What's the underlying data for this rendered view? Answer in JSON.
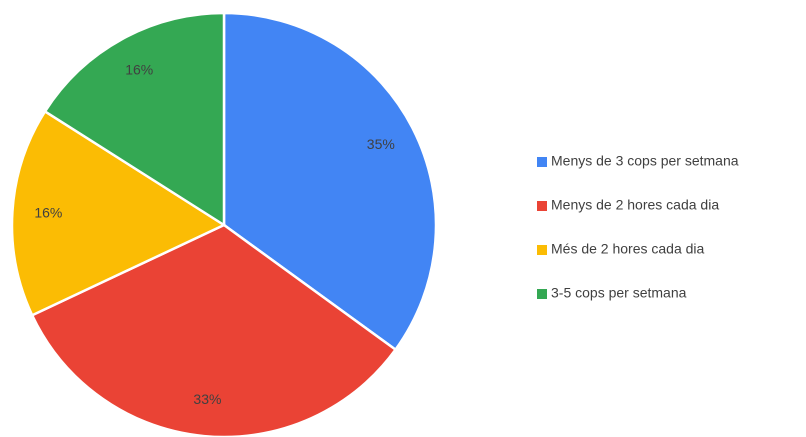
{
  "chart_data": {
    "type": "pie",
    "categories": [
      "Menys de 3 cops per setmana",
      "Menys de 2 hores cada dia",
      "Més de 2 hores cada dia",
      "3-5 cops per setmana"
    ],
    "values": [
      35,
      33,
      16,
      16
    ],
    "value_labels": [
      "35%",
      "33%",
      "16%",
      "16%"
    ],
    "colors": [
      "#4285f4",
      "#ea4335",
      "#fbbc04",
      "#34a853"
    ],
    "legend": "right"
  }
}
